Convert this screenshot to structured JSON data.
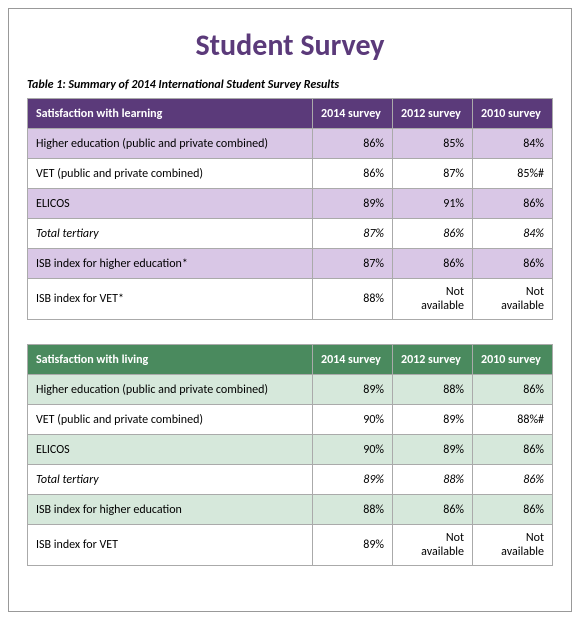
{
  "title": "Student Survey",
  "title_color": "#5b3a7a",
  "caption": "Table 1: Summary of 2014 International Student Survey Results",
  "tables": [
    {
      "header_bg": "#5b3a7a",
      "header_fg": "#ffffff",
      "stripe_bg": "#d9c7e6",
      "plain_bg": "#ffffff",
      "columns": [
        "Satisfaction with learning",
        "2014 survey",
        "2012 survey",
        "2010 survey"
      ],
      "rows": [
        {
          "cells": [
            "Higher education (public and private combined)",
            "86%",
            "85%",
            "84%"
          ],
          "italic": false,
          "striped": true
        },
        {
          "cells": [
            "VET (public and private combined)",
            "86%",
            "87%",
            "85%#"
          ],
          "italic": false,
          "striped": false
        },
        {
          "cells": [
            "ELICOS",
            "89%",
            "91%",
            "86%"
          ],
          "italic": false,
          "striped": true
        },
        {
          "cells": [
            "Total tertiary",
            "87%",
            "86%",
            "84%"
          ],
          "italic": true,
          "striped": false
        },
        {
          "cells": [
            "ISB index for higher education*",
            "87%",
            "86%",
            "86%"
          ],
          "italic": false,
          "striped": true
        },
        {
          "cells": [
            "ISB index for VET*",
            "88%",
            "Not available",
            "Not available"
          ],
          "italic": false,
          "striped": false
        }
      ]
    },
    {
      "header_bg": "#4a8a5e",
      "header_fg": "#ffffff",
      "stripe_bg": "#d6e8db",
      "plain_bg": "#ffffff",
      "columns": [
        "Satisfaction with living",
        "2014 survey",
        "2012 survey",
        "2010 survey"
      ],
      "rows": [
        {
          "cells": [
            "Higher education (public and private combined)",
            "89%",
            "88%",
            "86%"
          ],
          "italic": false,
          "striped": true
        },
        {
          "cells": [
            "VET (public and private combined)",
            "90%",
            "89%",
            "88%#"
          ],
          "italic": false,
          "striped": false
        },
        {
          "cells": [
            "ELICOS",
            "90%",
            "89%",
            "86%"
          ],
          "italic": false,
          "striped": true
        },
        {
          "cells": [
            "Total tertiary",
            "89%",
            "88%",
            "86%"
          ],
          "italic": true,
          "striped": false
        },
        {
          "cells": [
            "ISB index for higher education",
            "88%",
            "86%",
            "86%"
          ],
          "italic": false,
          "striped": true
        },
        {
          "cells": [
            "ISB index for VET",
            "89%",
            "Not available",
            "Not available"
          ],
          "italic": false,
          "striped": false
        }
      ]
    }
  ]
}
